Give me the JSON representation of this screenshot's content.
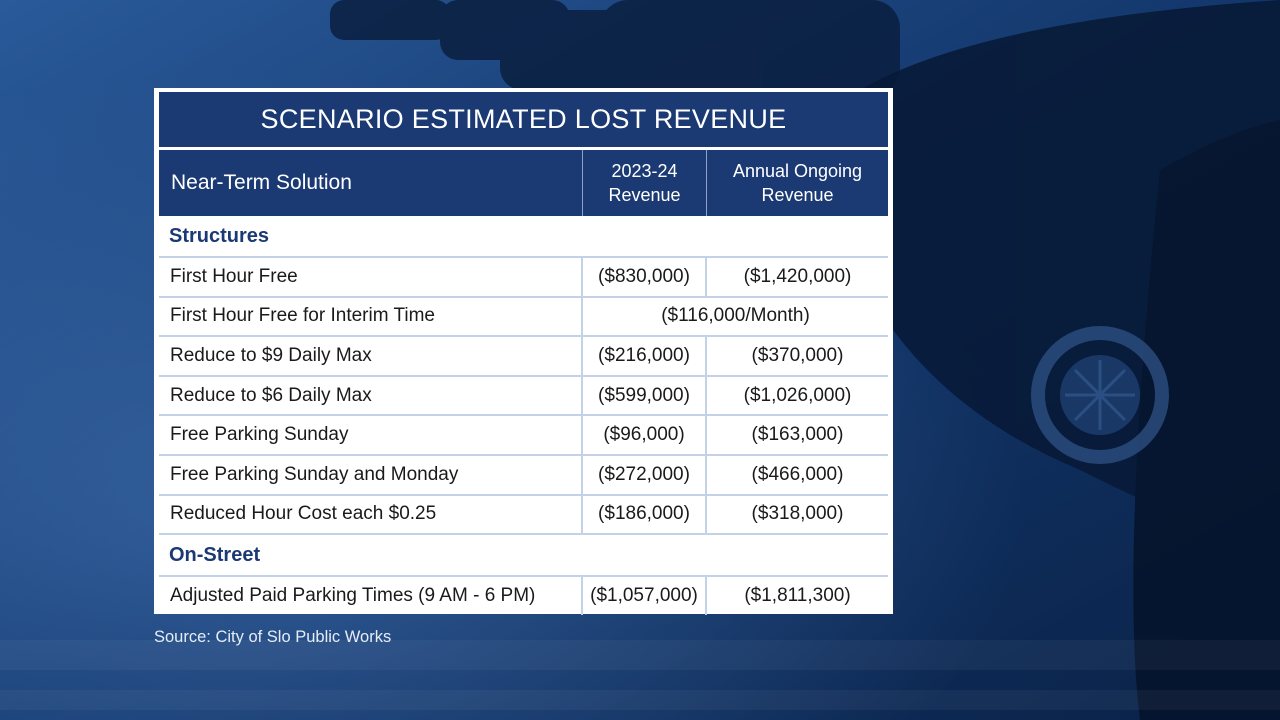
{
  "title": "SCENARIO ESTIMATED LOST REVENUE",
  "headers": {
    "col1": "Near-Term Solution",
    "col2_line1": "2023-24",
    "col2_line2": "Revenue",
    "col3_line1": "Annual Ongoing",
    "col3_line2": "Revenue"
  },
  "sections": {
    "structures": "Structures",
    "on_street": "On-Street"
  },
  "rows": [
    {
      "label": "First Hour Free",
      "revenue_2023_24": "($830,000)",
      "annual_ongoing": "($1,420,000)"
    },
    {
      "label": "First Hour Free for Interim Time",
      "span_value": "($116,000/Month)"
    },
    {
      "label": "Reduce to $9 Daily Max",
      "revenue_2023_24": "($216,000)",
      "annual_ongoing": "($370,000)"
    },
    {
      "label": "Reduce to $6 Daily Max",
      "revenue_2023_24": "($599,000)",
      "annual_ongoing": "($1,026,000)"
    },
    {
      "label": "Free Parking Sunday",
      "revenue_2023_24": "($96,000)",
      "annual_ongoing": "($163,000)"
    },
    {
      "label": "Free Parking Sunday and Monday",
      "revenue_2023_24": "($272,000)",
      "annual_ongoing": "($466,000)"
    },
    {
      "label": "Reduced Hour Cost each $0.25",
      "revenue_2023_24": "($186,000)",
      "annual_ongoing": "($318,000)"
    }
  ],
  "on_street_rows": [
    {
      "label": "Adjusted Paid Parking Times (9 AM - 6 PM)",
      "revenue_2023_24": "($1,057,000)",
      "annual_ongoing": "($1,811,300)"
    }
  ],
  "source": "Source: City of Slo Public Works",
  "colors": {
    "header_navy": "#1b3a73",
    "background_blue": "#0f2b57",
    "row_divider": "#c3d2e6"
  }
}
